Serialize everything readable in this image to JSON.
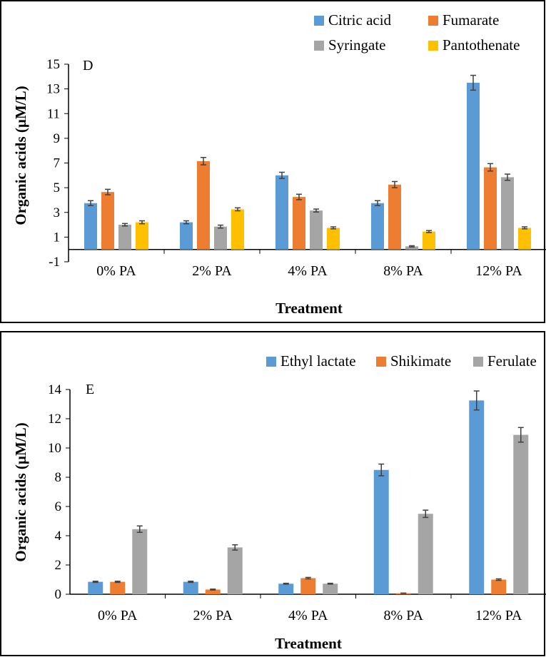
{
  "chart_data": [
    {
      "type": "bar",
      "panel_label": "D",
      "xlabel": "Treatment",
      "ylabel": "Organic acids (µM/L)",
      "ylim": [
        -1,
        15
      ],
      "yticks": [
        15,
        13,
        11,
        9,
        7,
        5,
        3,
        1,
        -1
      ],
      "categories": [
        "0% PA",
        "2% PA",
        "4% PA",
        "8% PA",
        "12% PA"
      ],
      "legend_position": "top-right",
      "grid": false,
      "series": [
        {
          "name": "Citric acid",
          "color": "#5B9BD5",
          "values": [
            3.75,
            2.2,
            6.0,
            3.75,
            13.5
          ],
          "errors": [
            0.2,
            0.12,
            0.25,
            0.2,
            0.6
          ]
        },
        {
          "name": "Fumarate",
          "color": "#ED7D31",
          "values": [
            4.65,
            7.15,
            4.25,
            5.25,
            6.65
          ],
          "errors": [
            0.22,
            0.3,
            0.22,
            0.25,
            0.3
          ]
        },
        {
          "name": "Syringate",
          "color": "#A5A5A5",
          "values": [
            2.0,
            1.85,
            3.15,
            0.25,
            5.85
          ],
          "errors": [
            0.1,
            0.12,
            0.12,
            0.05,
            0.25
          ]
        },
        {
          "name": "Pantothenate",
          "color": "#FFC000",
          "values": [
            2.2,
            3.25,
            1.75,
            1.45,
            1.75
          ],
          "errors": [
            0.12,
            0.12,
            0.08,
            0.08,
            0.08
          ]
        }
      ]
    },
    {
      "type": "bar",
      "panel_label": "E",
      "xlabel": "Treatment",
      "ylabel": "Organic acids (µM/L)",
      "ylim": [
        0,
        14
      ],
      "yticks": [
        14,
        12,
        10,
        8,
        6,
        4,
        2,
        0
      ],
      "categories": [
        "0% PA",
        "2% PA",
        "4% PA",
        "8% PA",
        "12% PA"
      ],
      "legend_position": "top-right",
      "grid": false,
      "series": [
        {
          "name": "Ethyl lactate",
          "color": "#5B9BD5",
          "values": [
            0.85,
            0.85,
            0.72,
            8.5,
            13.25
          ],
          "errors": [
            0.04,
            0.04,
            0.03,
            0.4,
            0.65
          ]
        },
        {
          "name": "Shikimate",
          "color": "#ED7D31",
          "values": [
            0.85,
            0.32,
            1.1,
            0.07,
            1.0
          ],
          "errors": [
            0.04,
            0.03,
            0.05,
            0.01,
            0.05
          ]
        },
        {
          "name": "Ferulate",
          "color": "#A5A5A5",
          "values": [
            4.45,
            3.2,
            0.72,
            5.5,
            10.9
          ],
          "errors": [
            0.22,
            0.18,
            0.03,
            0.25,
            0.5
          ]
        }
      ]
    }
  ]
}
